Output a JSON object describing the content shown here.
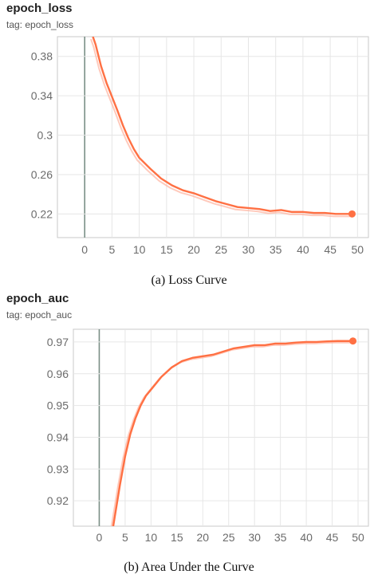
{
  "colors": {
    "series": "#ff7043",
    "series_raw": "#ffb4a0",
    "grid": "#e6e6e6",
    "axis": "#c8c8c8",
    "zero_line": "#7a8f86"
  },
  "chart_data": [
    {
      "type": "line",
      "title": "epoch_loss",
      "subtitle": "tag: epoch_loss",
      "caption": "(a) Loss Curve",
      "xlabel": "",
      "ylabel": "",
      "xlim": [
        -5,
        52
      ],
      "ylim": [
        0.196,
        0.4
      ],
      "xticks": [
        0,
        5,
        10,
        15,
        20,
        25,
        30,
        35,
        40,
        45,
        50
      ],
      "yticks": [
        0.22,
        0.26,
        0.3,
        0.34,
        0.38
      ],
      "ytick_labels": [
        "0.22",
        "0.26",
        "0.3",
        "0.34",
        "0.38"
      ],
      "grid": true,
      "series": [
        {
          "x": [
            1.5,
            2,
            3,
            4,
            5,
            6,
            7,
            8,
            9,
            10,
            12,
            14,
            16,
            18,
            20,
            22,
            24,
            26,
            28,
            30,
            32,
            34,
            36,
            38,
            40,
            42,
            44,
            46,
            48,
            49
          ],
          "y": [
            0.4,
            0.392,
            0.37,
            0.353,
            0.339,
            0.325,
            0.31,
            0.297,
            0.286,
            0.277,
            0.266,
            0.256,
            0.249,
            0.244,
            0.241,
            0.237,
            0.233,
            0.23,
            0.227,
            0.226,
            0.225,
            0.223,
            0.224,
            0.222,
            0.222,
            0.221,
            0.221,
            0.22,
            0.22,
            0.22
          ]
        }
      ]
    },
    {
      "type": "line",
      "title": "epoch_auc",
      "subtitle": "tag: epoch_auc",
      "caption": "(b) Area Under the Curve",
      "xlabel": "",
      "ylabel": "",
      "xlim": [
        -5,
        52
      ],
      "ylim": [
        0.912,
        0.974
      ],
      "xticks": [
        0,
        5,
        10,
        15,
        20,
        25,
        30,
        35,
        40,
        45,
        50
      ],
      "yticks": [
        0.92,
        0.93,
        0.94,
        0.95,
        0.96,
        0.97
      ],
      "ytick_labels": [
        "0.92",
        "0.93",
        "0.94",
        "0.95",
        "0.96",
        "0.97"
      ],
      "grid": true,
      "series": [
        {
          "x": [
            2.7,
            3,
            4,
            5,
            6,
            7,
            8,
            9,
            10,
            11,
            12,
            14,
            16,
            18,
            20,
            22,
            24,
            26,
            28,
            30,
            32,
            34,
            36,
            38,
            40,
            42,
            44,
            46,
            48,
            49
          ],
          "y": [
            0.912,
            0.915,
            0.925,
            0.934,
            0.941,
            0.946,
            0.95,
            0.953,
            0.955,
            0.957,
            0.959,
            0.962,
            0.964,
            0.965,
            0.9655,
            0.966,
            0.967,
            0.968,
            0.9685,
            0.969,
            0.969,
            0.9695,
            0.9695,
            0.9698,
            0.97,
            0.97,
            0.9702,
            0.9703,
            0.9703,
            0.9703
          ]
        }
      ]
    }
  ]
}
